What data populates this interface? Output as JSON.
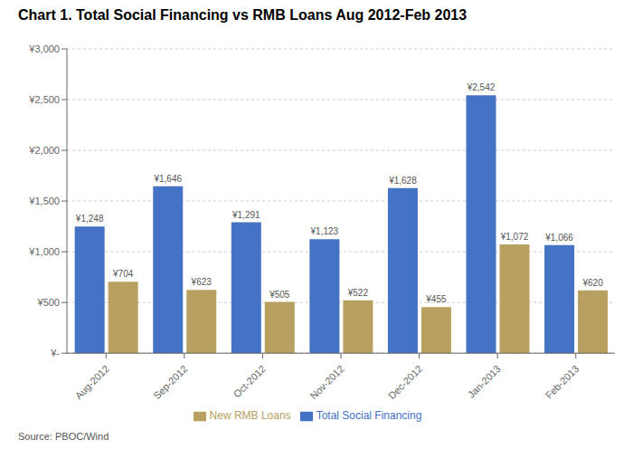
{
  "chart_data": {
    "type": "bar",
    "title": "Chart 1. Total Social Financing vs RMB Loans Aug 2012-Feb 2013",
    "categories": [
      "Aug-2012",
      "Sep-2012",
      "Oct-2012",
      "Nov-2012",
      "Dec-2012",
      "Jan-2013",
      "Feb-2013"
    ],
    "series": [
      {
        "name": "Total Social Financing",
        "color": "#4472C4",
        "values": [
          1248,
          1646,
          1291,
          1123,
          1628,
          2542,
          1066
        ],
        "value_labels": [
          "¥1,248",
          "¥1,646",
          "¥1,291",
          "¥1,123",
          "¥1,628",
          "¥2,542",
          "¥1,066"
        ]
      },
      {
        "name": "New RMB Loans",
        "color": "#B8A060",
        "values": [
          704,
          623,
          505,
          522,
          455,
          1072,
          620
        ],
        "value_labels": [
          "¥704",
          "¥623",
          "¥505",
          "¥522",
          "¥455",
          "¥1,072",
          "¥620"
        ]
      }
    ],
    "ylim": [
      0,
      3000
    ],
    "yticks": [
      {
        "value": 0,
        "label": "¥-"
      },
      {
        "value": 500,
        "label": "¥500"
      },
      {
        "value": 1000,
        "label": "¥1,000"
      },
      {
        "value": 1500,
        "label": "¥1,500"
      },
      {
        "value": 2000,
        "label": "¥2,000"
      },
      {
        "value": 2500,
        "label": "¥2,500"
      },
      {
        "value": 3000,
        "label": "¥3,000"
      }
    ],
    "grid": true,
    "legend": "bottom",
    "data_labels": true,
    "annotations": [
      "Source: PBOC/Wind"
    ]
  }
}
